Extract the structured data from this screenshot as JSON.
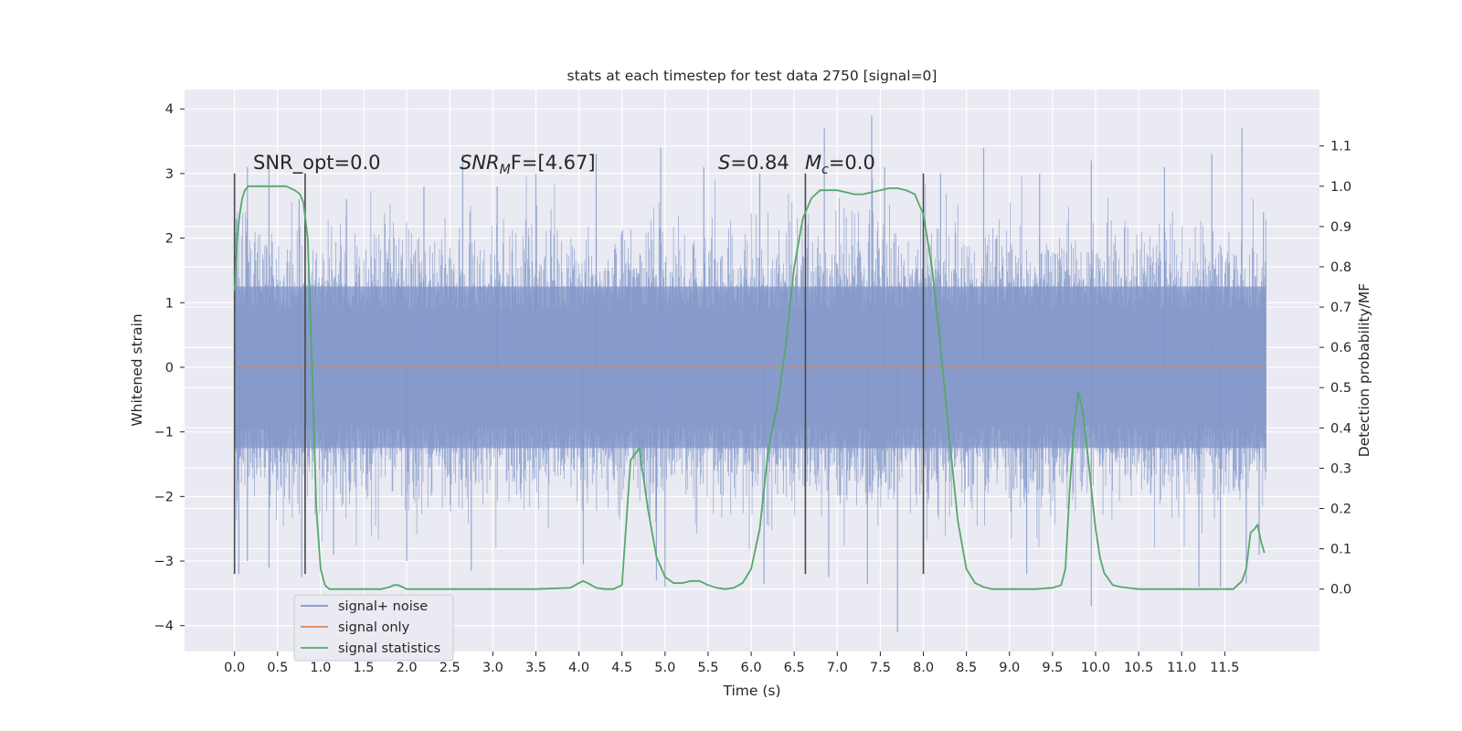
{
  "chart_data": {
    "type": "line",
    "title": "stats at each timestep for test data 2750 [signal=0]",
    "xlabel": "Time (s)",
    "ylabel": "Whitened strain",
    "y2label": "Detection probability/MF",
    "xlim": [
      -0.58,
      12.6
    ],
    "ylim": [
      -4.4,
      4.3
    ],
    "y2lim": [
      -0.155,
      1.24
    ],
    "xticks": [
      0.0,
      0.5,
      1.0,
      1.5,
      2.0,
      2.5,
      3.0,
      3.5,
      4.0,
      4.5,
      5.0,
      5.5,
      6.0,
      6.5,
      7.0,
      7.5,
      8.0,
      8.5,
      9.0,
      9.5,
      10.0,
      10.5,
      11.0,
      11.5
    ],
    "xtick_labels": [
      "0.0",
      "0.5",
      "1.0",
      "1.5",
      "2.0",
      "2.5",
      "3.0",
      "3.5",
      "4.0",
      "4.5",
      "5.0",
      "5.5",
      "6.0",
      "6.5",
      "7.0",
      "7.5",
      "8.0",
      "8.5",
      "9.0",
      "9.5",
      "10.0",
      "10.5",
      "11.0",
      "11.5"
    ],
    "yticks": [
      -4,
      -3,
      -2,
      -1,
      0,
      1,
      2,
      3,
      4
    ],
    "ytick_labels": [
      "−4",
      "−3",
      "−2",
      "−1",
      "0",
      "1",
      "2",
      "3",
      "4"
    ],
    "y2ticks": [
      0.0,
      0.1,
      0.2,
      0.3,
      0.4,
      0.5,
      0.6,
      0.7,
      0.8,
      0.9,
      1.0,
      1.1
    ],
    "y2tick_labels": [
      "0.0",
      "0.1",
      "0.2",
      "0.3",
      "0.4",
      "0.5",
      "0.6",
      "0.7",
      "0.8",
      "0.9",
      "1.0",
      "1.1"
    ],
    "grid": true,
    "legend_position": "lower-left",
    "legend": [
      {
        "label": "signal+ noise",
        "color": "#7f96c8"
      },
      {
        "label": "signal only",
        "color": "#dd8452"
      },
      {
        "label": "signal statistics",
        "color": "#55a868"
      }
    ],
    "colors": {
      "background": "#eaeaf2",
      "grid": "#ffffff",
      "noise": "#7f96c8",
      "signal": "#dd8452",
      "stats": "#55a868",
      "markers": "#4a4a4a"
    },
    "annotations": {
      "snr_opt": "SNR_opt=0.0",
      "snr_mf_main": "SNR",
      "snr_mf_sub": "M",
      "snr_mf_tail": "F=[4.67]",
      "s_main": "S",
      "s_tail": "=0.84",
      "mc_main": "M",
      "mc_sub": "c",
      "mc_tail": "=0.0"
    },
    "series": [
      {
        "name": "signal+ noise",
        "style": "dense noise trace",
        "x_range": [
          0.0,
          11.98
        ],
        "band_1sigma": [
          -1.25,
          1.25
        ],
        "envelope": [
          -2.6,
          2.6
        ],
        "peak_max": [
          [
            0.02,
            2.3
          ],
          [
            0.15,
            3.1
          ],
          [
            0.4,
            3.1
          ],
          [
            0.75,
            2.6
          ],
          [
            1.3,
            2.6
          ],
          [
            2.2,
            2.8
          ],
          [
            2.65,
            3.3
          ],
          [
            3.05,
            2.8
          ],
          [
            3.5,
            3.0
          ],
          [
            4.2,
            3.3
          ],
          [
            4.95,
            3.4
          ],
          [
            5.45,
            3.1
          ],
          [
            6.1,
            3.0
          ],
          [
            6.85,
            3.7
          ],
          [
            7.4,
            3.9
          ],
          [
            7.55,
            3.1
          ],
          [
            8.2,
            3.0
          ],
          [
            8.7,
            3.4
          ],
          [
            9.35,
            3.0
          ],
          [
            9.95,
            3.2
          ],
          [
            10.8,
            3.1
          ],
          [
            11.35,
            3.3
          ],
          [
            11.7,
            3.7
          ],
          [
            11.95,
            2.4
          ]
        ],
        "peak_min": [
          [
            0.05,
            -3.2
          ],
          [
            0.15,
            -3.0
          ],
          [
            0.4,
            -3.1
          ],
          [
            0.78,
            -3.25
          ],
          [
            1.15,
            -2.9
          ],
          [
            2.0,
            -3.0
          ],
          [
            2.75,
            -3.15
          ],
          [
            4.05,
            -3.05
          ],
          [
            4.9,
            -3.3
          ],
          [
            5.0,
            -3.4
          ],
          [
            6.15,
            -3.35
          ],
          [
            6.9,
            -3.25
          ],
          [
            7.35,
            -3.35
          ],
          [
            7.7,
            -4.1
          ],
          [
            9.2,
            -3.2
          ],
          [
            9.95,
            -3.7
          ],
          [
            11.2,
            -3.4
          ],
          [
            11.45,
            -3.4
          ],
          [
            11.75,
            -3.35
          ],
          [
            11.9,
            -2.9
          ]
        ]
      },
      {
        "name": "signal only",
        "x": [
          0.0,
          11.98
        ],
        "y": [
          0.0,
          0.0
        ]
      },
      {
        "name": "signal statistics",
        "axis": "right",
        "x": [
          0.0,
          0.03,
          0.06,
          0.09,
          0.12,
          0.16,
          0.2,
          0.3,
          0.5,
          0.6,
          0.7,
          0.76,
          0.8,
          0.85,
          0.9,
          0.95,
          1.0,
          1.05,
          1.1,
          1.2,
          1.5,
          1.7,
          1.8,
          1.85,
          1.9,
          1.95,
          2.0,
          2.1,
          2.5,
          3.0,
          3.5,
          3.9,
          4.0,
          4.05,
          4.1,
          4.2,
          4.3,
          4.4,
          4.5,
          4.6,
          4.7,
          4.8,
          4.9,
          5.0,
          5.1,
          5.2,
          5.3,
          5.4,
          5.5,
          5.6,
          5.7,
          5.8,
          5.9,
          6.0,
          6.1,
          6.2,
          6.3,
          6.4,
          6.5,
          6.6,
          6.7,
          6.8,
          6.9,
          7.0,
          7.1,
          7.2,
          7.3,
          7.4,
          7.5,
          7.6,
          7.7,
          7.8,
          7.9,
          8.0,
          8.1,
          8.2,
          8.3,
          8.4,
          8.5,
          8.6,
          8.7,
          8.8,
          8.9,
          9.0,
          9.3,
          9.5,
          9.6,
          9.65,
          9.7,
          9.75,
          9.8,
          9.85,
          9.9,
          9.95,
          10.0,
          10.05,
          10.1,
          10.2,
          10.3,
          10.5,
          11.0,
          11.5,
          11.6,
          11.7,
          11.75,
          11.8,
          11.85,
          11.88,
          11.92,
          11.96
        ],
        "y": [
          0.74,
          0.87,
          0.93,
          0.97,
          0.99,
          1.0,
          1.0,
          1.0,
          1.0,
          1.0,
          0.99,
          0.98,
          0.96,
          0.87,
          0.55,
          0.2,
          0.05,
          0.01,
          0.0,
          0.0,
          0.0,
          0.0,
          0.005,
          0.01,
          0.01,
          0.005,
          0.0,
          0.0,
          0.0,
          0.0,
          0.0,
          0.003,
          0.015,
          0.02,
          0.015,
          0.003,
          0.0,
          0.0,
          0.01,
          0.32,
          0.35,
          0.2,
          0.08,
          0.03,
          0.015,
          0.015,
          0.02,
          0.02,
          0.01,
          0.003,
          0.0,
          0.003,
          0.015,
          0.05,
          0.15,
          0.35,
          0.45,
          0.6,
          0.8,
          0.92,
          0.97,
          0.99,
          0.99,
          0.99,
          0.985,
          0.98,
          0.98,
          0.985,
          0.99,
          0.995,
          0.995,
          0.99,
          0.98,
          0.93,
          0.8,
          0.6,
          0.38,
          0.17,
          0.05,
          0.015,
          0.005,
          0.0,
          0.0,
          0.0,
          0.0,
          0.003,
          0.01,
          0.05,
          0.25,
          0.4,
          0.49,
          0.44,
          0.35,
          0.25,
          0.15,
          0.08,
          0.04,
          0.01,
          0.005,
          0.0,
          0.0,
          0.0,
          0.0,
          0.02,
          0.05,
          0.14,
          0.15,
          0.16,
          0.12,
          0.09
        ]
      }
    ],
    "vertical_markers": [
      {
        "x": 0.0,
        "y_range": [
          -3.2,
          3.0
        ]
      },
      {
        "x": 0.82,
        "y_range": [
          -3.2,
          3.0
        ]
      },
      {
        "x": 6.63,
        "y_range": [
          -3.2,
          3.0
        ]
      },
      {
        "x": 8.0,
        "y_range": [
          -3.2,
          3.0
        ]
      }
    ]
  }
}
